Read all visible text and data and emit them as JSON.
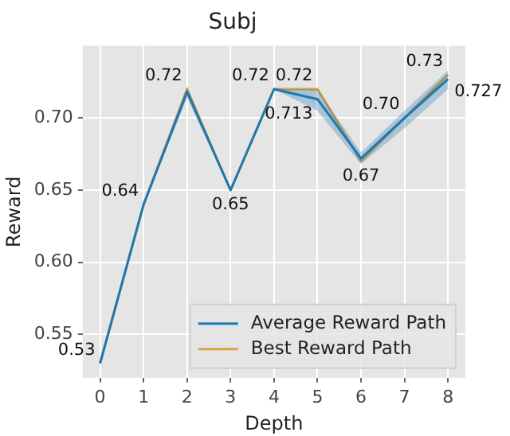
{
  "chart_data": {
    "type": "line",
    "title": "Subj",
    "xlabel": "Depth",
    "ylabel": "Reward",
    "x": [
      0,
      1,
      2,
      3,
      4,
      5,
      6,
      7,
      8
    ],
    "series": [
      {
        "name": "Average Reward Path",
        "color": "#1f77b4",
        "values": [
          0.53,
          0.64,
          0.718,
          0.65,
          0.72,
          0.713,
          0.672,
          0.7,
          0.727
        ],
        "lower": [
          0.53,
          0.64,
          0.714,
          0.65,
          0.72,
          0.705,
          0.668,
          0.693,
          0.72
        ],
        "upper": [
          0.53,
          0.64,
          0.722,
          0.65,
          0.72,
          0.72,
          0.676,
          0.705,
          0.733
        ],
        "value_labels": [
          null,
          null,
          null,
          null,
          null,
          "0.713",
          null,
          null,
          "0.727"
        ]
      },
      {
        "name": "Best Reward Path",
        "color": "#dda33a",
        "values": [
          0.53,
          0.64,
          0.72,
          0.65,
          0.72,
          0.72,
          0.67,
          0.7,
          0.73
        ],
        "value_labels": [
          "0.53",
          "0.64",
          "0.72",
          "0.65",
          "0.72",
          "0.72",
          "0.67",
          "0.70",
          "0.73"
        ]
      }
    ],
    "xlim": [
      -0.4,
      8.4
    ],
    "xticks": [
      0,
      1,
      2,
      3,
      4,
      5,
      6,
      7,
      8
    ],
    "ylim": [
      0.52,
      0.75
    ],
    "yticks": [
      0.55,
      {
        "value": 0.6,
        "label": "0.60"
      },
      0.65,
      {
        "value": 0.7,
        "label": "0.70"
      }
    ],
    "grid": true,
    "legend": "bottom right",
    "marker": "none",
    "line_style": "solid"
  }
}
